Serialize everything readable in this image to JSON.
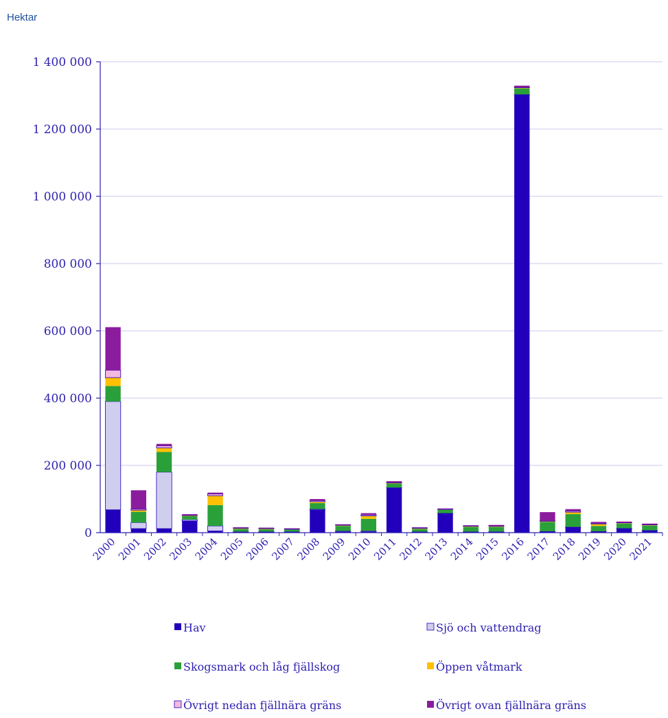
{
  "y_unit": "Hektar",
  "chart_data": {
    "type": "bar",
    "stacked": true,
    "title": "",
    "xlabel": "",
    "ylabel": "Hektar",
    "ylim": [
      0,
      1400000
    ],
    "yticks": [
      0,
      200000,
      400000,
      600000,
      800000,
      1000000,
      1200000,
      1400000
    ],
    "ytick_labels": [
      "0",
      "200 000",
      "400 000",
      "600 000",
      "800 000",
      "1 000 000",
      "1 200 000",
      "1 400 000"
    ],
    "grid": "horizontal",
    "legend_position": "bottom",
    "categories": [
      "2000",
      "2001",
      "2002",
      "2003",
      "2004",
      "2005",
      "2006",
      "2007",
      "2008",
      "2009",
      "2010",
      "2011",
      "2012",
      "2013",
      "2014",
      "2015",
      "2016",
      "2017",
      "2018",
      "2019",
      "2020",
      "2021"
    ],
    "series": [
      {
        "name": "Hav",
        "color": "#2200bb",
        "pattern": "solid",
        "values": [
          68000,
          12000,
          12000,
          35000,
          5000,
          2000,
          2000,
          2000,
          68000,
          3000,
          3000,
          133000,
          2000,
          57000,
          2000,
          2000,
          1302000,
          3000,
          16000,
          3000,
          12000,
          6000
        ]
      },
      {
        "name": "Sjö och vattendrag",
        "color": "#d0ceee",
        "pattern": "outlined",
        "values": [
          322000,
          18000,
          168000,
          4000,
          15000,
          1000,
          1000,
          1000,
          2000,
          2000,
          2000,
          1000,
          1000,
          1000,
          1000,
          1000,
          1000,
          1000,
          1000,
          1000,
          1000,
          1000
        ]
      },
      {
        "name": "Skogsmark och låg fjällskog",
        "color": "#2aa03a",
        "pattern": "solid",
        "values": [
          46000,
          32000,
          60000,
          10000,
          62000,
          8000,
          7000,
          6000,
          18000,
          15000,
          36000,
          12000,
          8000,
          10000,
          14000,
          14000,
          18000,
          28000,
          38000,
          16000,
          14000,
          14000
        ]
      },
      {
        "name": "Öppen våtmark",
        "color": "#ffc000",
        "pattern": "solid",
        "values": [
          25000,
          5000,
          12000,
          2000,
          28000,
          2000,
          2000,
          1000,
          4000,
          2000,
          9000,
          2000,
          2000,
          1000,
          2000,
          2000,
          2000,
          2000,
          6000,
          6000,
          2000,
          2000
        ]
      },
      {
        "name": "Övrigt nedan fjällnära gräns",
        "color": "#f2b8e0",
        "pattern": "outlined",
        "values": [
          22000,
          3000,
          6000,
          1000,
          5000,
          1000,
          1000,
          1000,
          3000,
          1000,
          3000,
          1000,
          1000,
          1000,
          1000,
          1000,
          1000,
          1000,
          3000,
          2000,
          1000,
          1000
        ]
      },
      {
        "name": "Övrigt ovan fjällnära gräns",
        "color": "#8b1c9e",
        "pattern": "solid",
        "values": [
          128000,
          56000,
          6000,
          3000,
          4000,
          2000,
          2000,
          2000,
          5000,
          2000,
          5000,
          4000,
          2000,
          2000,
          2000,
          3000,
          5000,
          26000,
          6000,
          4000,
          3000,
          3000
        ]
      }
    ]
  }
}
